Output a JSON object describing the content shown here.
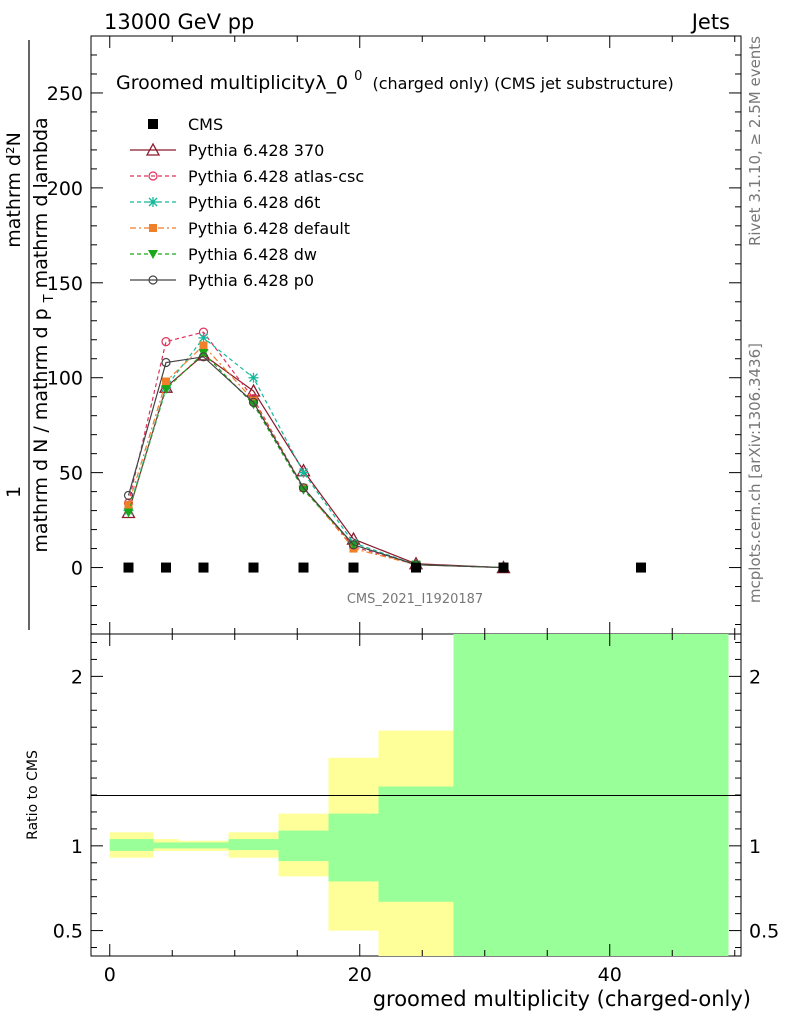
{
  "header": {
    "left": "13000 GeV pp",
    "right": "Jets"
  },
  "chart_data": {
    "type": "line",
    "title": "Groomed multiplicityλ_0",
    "title_superscript": "0",
    "title_suffix": "(charged only) (CMS jet substructure)",
    "ylabel_upper_main": "mathrm d N / mathrm d p",
    "ylabel_upper_sub": "T",
    "ylabel_upper_main2": " mathrm d lambda",
    "ylabel_upper_denom_left": "mathrm d p",
    "ylabel_upper_denom_sub": "T",
    "ylabel_upper_denom_right": "mathrm d lambda",
    "ylabel_numerator": "mathrm d²N",
    "ylabel_one": "1",
    "ylabel_lower": "Ratio to CMS",
    "xlabel": "groomed multiplicity (charged-only)",
    "watermark": "CMS_2021_I1920187",
    "side_label_1": "Rivet 3.1.10, ≥ 2.5M events",
    "side_label_2": "mcplots.cern.ch [arXiv:1306.3436]",
    "xlim": [
      -1.5,
      50.5
    ],
    "ylim": [
      -35,
      280
    ],
    "ratio_ylim": [
      0.35,
      2.25
    ],
    "x_ticks": [
      0,
      20,
      40
    ],
    "y_ticks": [
      0,
      50,
      100,
      150,
      200,
      250
    ],
    "ratio_ticks": [
      0.5,
      1,
      2
    ],
    "cms": {
      "name": "CMS",
      "x": [
        1.5,
        4.5,
        7.5,
        11.5,
        15.5,
        19.5,
        24.5,
        31.5,
        42.5
      ],
      "y": [
        0,
        0,
        0,
        0,
        0,
        0,
        0,
        0,
        0
      ]
    },
    "series": [
      {
        "name": "Pythia 6.428 370",
        "color": "#8b1a2c",
        "marker": "triangle-open",
        "dash": "",
        "x": [
          1.5,
          4.5,
          7.5,
          11.5,
          15.5,
          19.5,
          24.5,
          31.5
        ],
        "y": [
          29,
          95,
          112,
          93,
          51,
          15,
          2,
          0
        ]
      },
      {
        "name": "Pythia 6.428 atlas-csc",
        "color": "#e0305a",
        "marker": "circle-open",
        "dash": "4,3",
        "x": [
          1.5,
          4.5,
          7.5,
          11.5,
          15.5,
          19.5,
          24.5,
          31.5
        ],
        "y": [
          34,
          119,
          124,
          89,
          42,
          11,
          1.5,
          0
        ]
      },
      {
        "name": "Pythia 6.428 d6t",
        "color": "#14b89a",
        "marker": "star",
        "dash": "4,3",
        "x": [
          1.5,
          4.5,
          7.5,
          11.5,
          15.5,
          19.5,
          24.5,
          31.5
        ],
        "y": [
          30,
          95,
          121,
          100,
          50,
          13,
          1.5,
          0
        ]
      },
      {
        "name": "Pythia 6.428 default",
        "color": "#f07f2a",
        "marker": "square",
        "dash": "6,3,2,3",
        "x": [
          1.5,
          4.5,
          7.5,
          11.5,
          15.5,
          19.5,
          24.5,
          31.5
        ],
        "y": [
          33,
          98,
          117,
          88,
          42,
          10,
          1.5,
          0
        ]
      },
      {
        "name": "Pythia 6.428 dw",
        "color": "#1aa81a",
        "marker": "triangle-down",
        "dash": "4,3",
        "x": [
          1.5,
          4.5,
          7.5,
          11.5,
          15.5,
          19.5,
          24.5,
          31.5
        ],
        "y": [
          29,
          94,
          113,
          86,
          41,
          12,
          1.5,
          0
        ]
      },
      {
        "name": "Pythia 6.428 p0",
        "color": "#444444",
        "marker": "circle-open",
        "dash": "",
        "x": [
          1.5,
          4.5,
          7.5,
          11.5,
          15.5,
          19.5,
          24.5,
          31.5
        ],
        "y": [
          38,
          108,
          111,
          87,
          42,
          12,
          1.5,
          0
        ]
      }
    ],
    "ratio_bands": [
      {
        "x0": 0,
        "x1": 3.5,
        "stat_lo": 0.97,
        "stat_hi": 1.04,
        "tot_lo": 0.93,
        "tot_hi": 1.08
      },
      {
        "x0": 3.5,
        "x1": 5.5,
        "stat_lo": 0.985,
        "stat_hi": 1.02,
        "tot_lo": 0.97,
        "tot_hi": 1.04
      },
      {
        "x0": 5.5,
        "x1": 9.5,
        "stat_lo": 0.985,
        "stat_hi": 1.02,
        "tot_lo": 0.97,
        "tot_hi": 1.03
      },
      {
        "x0": 9.5,
        "x1": 13.5,
        "stat_lo": 0.975,
        "stat_hi": 1.04,
        "tot_lo": 0.93,
        "tot_hi": 1.08
      },
      {
        "x0": 13.5,
        "x1": 17.5,
        "stat_lo": 0.91,
        "stat_hi": 1.09,
        "tot_lo": 0.82,
        "tot_hi": 1.19
      },
      {
        "x0": 17.5,
        "x1": 21.5,
        "stat_lo": 0.79,
        "stat_hi": 1.19,
        "tot_lo": 0.5,
        "tot_hi": 1.52
      },
      {
        "x0": 21.5,
        "x1": 27.5,
        "stat_lo": 0.67,
        "stat_hi": 1.35,
        "tot_lo": 0.35,
        "tot_hi": 1.68
      },
      {
        "x0": 27.5,
        "x1": 49.5,
        "stat_lo": 0.35,
        "stat_hi": 2.25,
        "tot_lo": 0.35,
        "tot_hi": 2.25
      }
    ]
  }
}
